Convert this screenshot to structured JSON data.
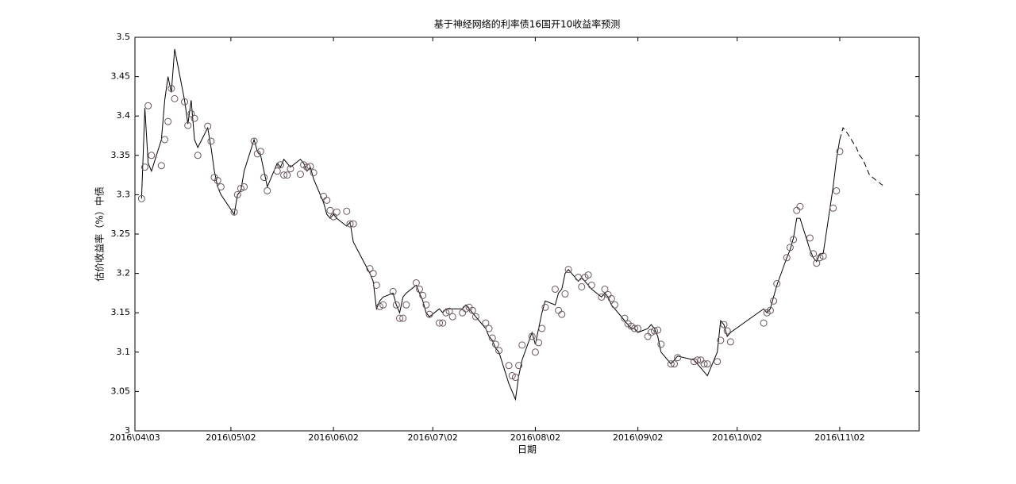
{
  "chart_data": {
    "type": "line",
    "title": "基于神经网络的利率债16国开10收益率预测",
    "xlabel": "日期",
    "ylabel": "估价收益率（%）中债",
    "xlim": [
      "2016-04-03",
      "2016-11-26"
    ],
    "xticks": [
      {
        "value": "2016-04-03",
        "label": "2016\\04\\03"
      },
      {
        "value": "2016-05-02",
        "label": "2016\\05\\02"
      },
      {
        "value": "2016-06-02",
        "label": "2016\\06\\02"
      },
      {
        "value": "2016-07-02",
        "label": "2016\\07\\02"
      },
      {
        "value": "2016-08-02",
        "label": "2016\\08\\02"
      },
      {
        "value": "2016-09-02",
        "label": "2016\\09\\02"
      },
      {
        "value": "2016-10-02",
        "label": "2016\\10\\02"
      },
      {
        "value": "2016-11-02",
        "label": "2016\\11\\02"
      }
    ],
    "ylim": [
      3,
      3.5
    ],
    "yticks": [
      3,
      3.05,
      3.1,
      3.15,
      3.2,
      3.25,
      3.3,
      3.35,
      3.4,
      3.45,
      3.5
    ],
    "grid": false,
    "x": [
      "2016-04-05",
      "2016-04-06",
      "2016-04-07",
      "2016-04-08",
      "2016-04-11",
      "2016-04-12",
      "2016-04-13",
      "2016-04-14",
      "2016-04-15",
      "2016-04-18",
      "2016-04-19",
      "2016-04-20",
      "2016-04-21",
      "2016-04-22",
      "2016-04-25",
      "2016-04-26",
      "2016-04-27",
      "2016-04-28",
      "2016-04-29",
      "2016-05-03",
      "2016-05-04",
      "2016-05-05",
      "2016-05-06",
      "2016-05-09",
      "2016-05-10",
      "2016-05-11",
      "2016-05-12",
      "2016-05-13",
      "2016-05-16",
      "2016-05-17",
      "2016-05-18",
      "2016-05-19",
      "2016-05-20",
      "2016-05-23",
      "2016-05-24",
      "2016-05-25",
      "2016-05-26",
      "2016-05-27",
      "2016-05-30",
      "2016-05-31",
      "2016-06-01",
      "2016-06-02",
      "2016-06-03",
      "2016-06-06",
      "2016-06-07",
      "2016-06-08",
      "2016-06-13",
      "2016-06-14",
      "2016-06-15",
      "2016-06-16",
      "2016-06-17",
      "2016-06-20",
      "2016-06-21",
      "2016-06-22",
      "2016-06-23",
      "2016-06-24",
      "2016-06-27",
      "2016-06-28",
      "2016-06-29",
      "2016-06-30",
      "2016-07-01",
      "2016-07-04",
      "2016-07-05",
      "2016-07-06",
      "2016-07-07",
      "2016-07-08",
      "2016-07-11",
      "2016-07-12",
      "2016-07-13",
      "2016-07-14",
      "2016-07-15",
      "2016-07-18",
      "2016-07-19",
      "2016-07-20",
      "2016-07-21",
      "2016-07-22",
      "2016-07-25",
      "2016-07-26",
      "2016-07-27",
      "2016-07-28",
      "2016-07-29",
      "2016-08-01",
      "2016-08-02",
      "2016-08-03",
      "2016-08-04",
      "2016-08-05",
      "2016-08-08",
      "2016-08-09",
      "2016-08-10",
      "2016-08-11",
      "2016-08-12",
      "2016-08-15",
      "2016-08-16",
      "2016-08-17",
      "2016-08-18",
      "2016-08-19",
      "2016-08-22",
      "2016-08-23",
      "2016-08-24",
      "2016-08-25",
      "2016-08-26",
      "2016-08-29",
      "2016-08-30",
      "2016-08-31",
      "2016-09-01",
      "2016-09-02",
      "2016-09-05",
      "2016-09-06",
      "2016-09-07",
      "2016-09-08",
      "2016-09-09",
      "2016-09-12",
      "2016-09-13",
      "2016-09-14",
      "2016-09-19",
      "2016-09-20",
      "2016-09-21",
      "2016-09-22",
      "2016-09-23",
      "2016-09-26",
      "2016-09-27",
      "2016-09-28",
      "2016-09-29",
      "2016-09-30",
      "2016-10-10",
      "2016-10-11",
      "2016-10-12",
      "2016-10-13",
      "2016-10-14",
      "2016-10-17",
      "2016-10-18",
      "2016-10-19",
      "2016-10-20",
      "2016-10-21",
      "2016-10-24",
      "2016-10-25",
      "2016-10-26",
      "2016-10-27",
      "2016-10-28",
      "2016-10-31",
      "2016-11-01",
      "2016-11-02"
    ],
    "series": [
      {
        "style": "line",
        "color": "#000000",
        "values": [
          3.295,
          3.41,
          3.34,
          3.33,
          3.37,
          3.42,
          3.45,
          3.43,
          3.485,
          3.42,
          3.39,
          3.42,
          3.37,
          3.36,
          3.385,
          3.36,
          3.33,
          3.31,
          3.3,
          3.275,
          3.3,
          3.305,
          3.33,
          3.37,
          3.355,
          3.35,
          3.33,
          3.31,
          3.34,
          3.335,
          3.345,
          3.34,
          3.335,
          3.345,
          3.34,
          3.33,
          3.335,
          3.32,
          3.29,
          3.275,
          3.27,
          3.275,
          3.27,
          3.26,
          3.265,
          3.24,
          3.2,
          3.19,
          3.155,
          3.165,
          3.17,
          3.175,
          3.16,
          3.15,
          3.17,
          3.175,
          3.185,
          3.175,
          3.165,
          3.15,
          3.145,
          3.155,
          3.15,
          3.155,
          3.155,
          3.155,
          3.155,
          3.16,
          3.155,
          3.15,
          3.145,
          3.13,
          3.12,
          3.115,
          3.105,
          3.1,
          3.06,
          3.05,
          3.04,
          3.07,
          3.09,
          3.125,
          3.11,
          3.13,
          3.15,
          3.165,
          3.16,
          3.175,
          3.18,
          3.2,
          3.205,
          3.19,
          3.195,
          3.19,
          3.185,
          3.18,
          3.17,
          3.175,
          3.17,
          3.16,
          3.155,
          3.14,
          3.135,
          3.13,
          3.13,
          3.125,
          3.13,
          3.135,
          3.13,
          3.12,
          3.1,
          3.085,
          3.09,
          3.095,
          3.09,
          3.085,
          3.08,
          3.075,
          3.07,
          3.1,
          3.14,
          3.135,
          3.12,
          3.125,
          3.155,
          3.15,
          3.155,
          3.17,
          3.185,
          3.22,
          3.23,
          3.245,
          3.27,
          3.27,
          3.23,
          3.22,
          3.215,
          3.225,
          3.225,
          3.31,
          3.345,
          3.37
        ]
      },
      {
        "style": "marker",
        "color": "#6a5560",
        "values": [
          3.295,
          3.335,
          3.413,
          3.35,
          3.337,
          3.37,
          3.393,
          3.435,
          3.422,
          3.418,
          3.388,
          3.403,
          3.397,
          3.35,
          3.387,
          3.368,
          3.322,
          3.318,
          3.31,
          3.278,
          3.3,
          3.308,
          3.31,
          3.368,
          3.352,
          3.355,
          3.322,
          3.305,
          3.33,
          3.338,
          3.325,
          3.325,
          3.333,
          3.326,
          3.338,
          3.335,
          3.336,
          3.328,
          3.298,
          3.293,
          3.28,
          3.272,
          3.278,
          3.279,
          3.263,
          3.263,
          3.206,
          3.2,
          3.185,
          3.158,
          3.16,
          3.177,
          3.16,
          3.143,
          3.143,
          3.16,
          3.188,
          3.18,
          3.172,
          3.16,
          3.148,
          3.137,
          3.137,
          3.15,
          3.152,
          3.145,
          3.15,
          3.155,
          3.157,
          3.153,
          3.145,
          3.137,
          3.13,
          3.118,
          3.11,
          3.102,
          3.083,
          3.07,
          3.068,
          3.083,
          3.109,
          3.12,
          3.1,
          3.112,
          3.13,
          3.157,
          3.18,
          3.153,
          3.148,
          3.174,
          3.205,
          3.195,
          3.183,
          3.195,
          3.198,
          3.185,
          3.17,
          3.18,
          3.173,
          3.168,
          3.16,
          3.143,
          3.136,
          3.133,
          3.13,
          3.13,
          3.12,
          3.125,
          3.127,
          3.128,
          3.11,
          3.085,
          3.085,
          3.093,
          3.088,
          3.09,
          3.09,
          3.085,
          3.085,
          3.088,
          3.115,
          3.135,
          3.127,
          3.113,
          3.137,
          3.15,
          3.153,
          3.165,
          3.187,
          3.22,
          3.233,
          3.243,
          3.28,
          3.285,
          3.245,
          3.225,
          3.213,
          3.22,
          3.222,
          3.283,
          3.305,
          3.355
        ]
      }
    ],
    "forecast": {
      "style": "dashed",
      "color": "#000000",
      "x": [
        "2016-11-02",
        "2016-11-03",
        "2016-11-04",
        "2016-11-07",
        "2016-11-08",
        "2016-11-09",
        "2016-11-10",
        "2016-11-11",
        "2016-11-14",
        "2016-11-15"
      ],
      "values": [
        3.37,
        3.385,
        3.38,
        3.36,
        3.35,
        3.345,
        3.335,
        3.325,
        3.315,
        3.312
      ]
    }
  }
}
